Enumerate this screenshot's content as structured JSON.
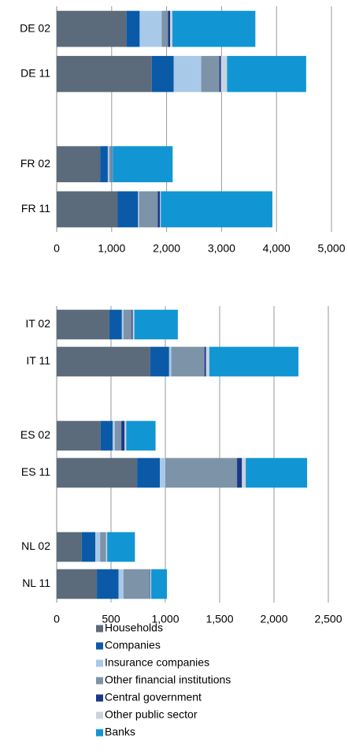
{
  "chart_data": [
    {
      "type": "bar",
      "orientation": "horizontal",
      "stacked": true,
      "grid": true,
      "categories": [
        "DE 02",
        "DE 11",
        null,
        "FR 02",
        "FR 11"
      ],
      "series": [
        {
          "name": "Households",
          "color": "#5b6b7b",
          "values": [
            1270,
            1730,
            null,
            790,
            1110
          ]
        },
        {
          "name": "Companies",
          "color": "#0b5aa8",
          "values": [
            240,
            400,
            null,
            140,
            370
          ]
        },
        {
          "name": "Insurance companies",
          "color": "#a9c9e9",
          "values": [
            400,
            500,
            null,
            30,
            20
          ]
        },
        {
          "name": "Other financial institutions",
          "color": "#7d93a7",
          "values": [
            115,
            330,
            null,
            40,
            340
          ]
        },
        {
          "name": "Central government",
          "color": "#1b378a",
          "values": [
            40,
            30,
            null,
            10,
            40
          ]
        },
        {
          "name": "Other public sector",
          "color": "#c9d4de",
          "values": [
            40,
            110,
            null,
            10,
            15
          ]
        },
        {
          "name": "Banks",
          "color": "#1196d3",
          "values": [
            1510,
            1440,
            null,
            1090,
            2030
          ]
        }
      ],
      "xlim": [
        0,
        5000
      ],
      "xticks": [
        0,
        {
          "value": 1000,
          "label": "1,000"
        },
        {
          "value": 2000,
          "label": "2,000"
        },
        {
          "value": 3000,
          "label": "3,000"
        },
        {
          "value": 4000,
          "label": "4,000"
        },
        {
          "value": 5000,
          "label": "5,000"
        }
      ]
    },
    {
      "type": "bar",
      "orientation": "horizontal",
      "stacked": true,
      "grid": true,
      "categories": [
        "IT 02",
        "IT 11",
        null,
        "ES 02",
        "ES 11",
        null,
        "NL 02",
        "NL 11"
      ],
      "series": [
        {
          "name": "Households",
          "color": "#5b6b7b",
          "values": [
            485,
            860,
            null,
            405,
            740,
            null,
            230,
            370
          ]
        },
        {
          "name": "Companies",
          "color": "#0b5aa8",
          "values": [
            115,
            175,
            null,
            110,
            210,
            null,
            125,
            200
          ]
        },
        {
          "name": "Insurance companies",
          "color": "#a9c9e9",
          "values": [
            15,
            20,
            null,
            20,
            50,
            null,
            45,
            45
          ]
        },
        {
          "name": "Other financial institutions",
          "color": "#7d93a7",
          "values": [
            75,
            305,
            null,
            60,
            660,
            null,
            55,
            240
          ]
        },
        {
          "name": "Central government",
          "color": "#1b378a",
          "values": [
            10,
            15,
            null,
            30,
            45,
            null,
            0,
            5
          ]
        },
        {
          "name": "Other public sector",
          "color": "#c9d4de",
          "values": [
            15,
            30,
            null,
            15,
            35,
            null,
            10,
            10
          ]
        },
        {
          "name": "Banks",
          "color": "#1196d3",
          "values": [
            400,
            820,
            null,
            270,
            565,
            null,
            255,
            145
          ]
        }
      ],
      "xlim": [
        0,
        2500
      ],
      "xticks": [
        0,
        500,
        {
          "value": 1000,
          "label": "1,000"
        },
        {
          "value": 1500,
          "label": "1,500"
        },
        {
          "value": 2000,
          "label": "2,000"
        },
        {
          "value": 2500,
          "label": "2,500"
        }
      ]
    }
  ]
}
